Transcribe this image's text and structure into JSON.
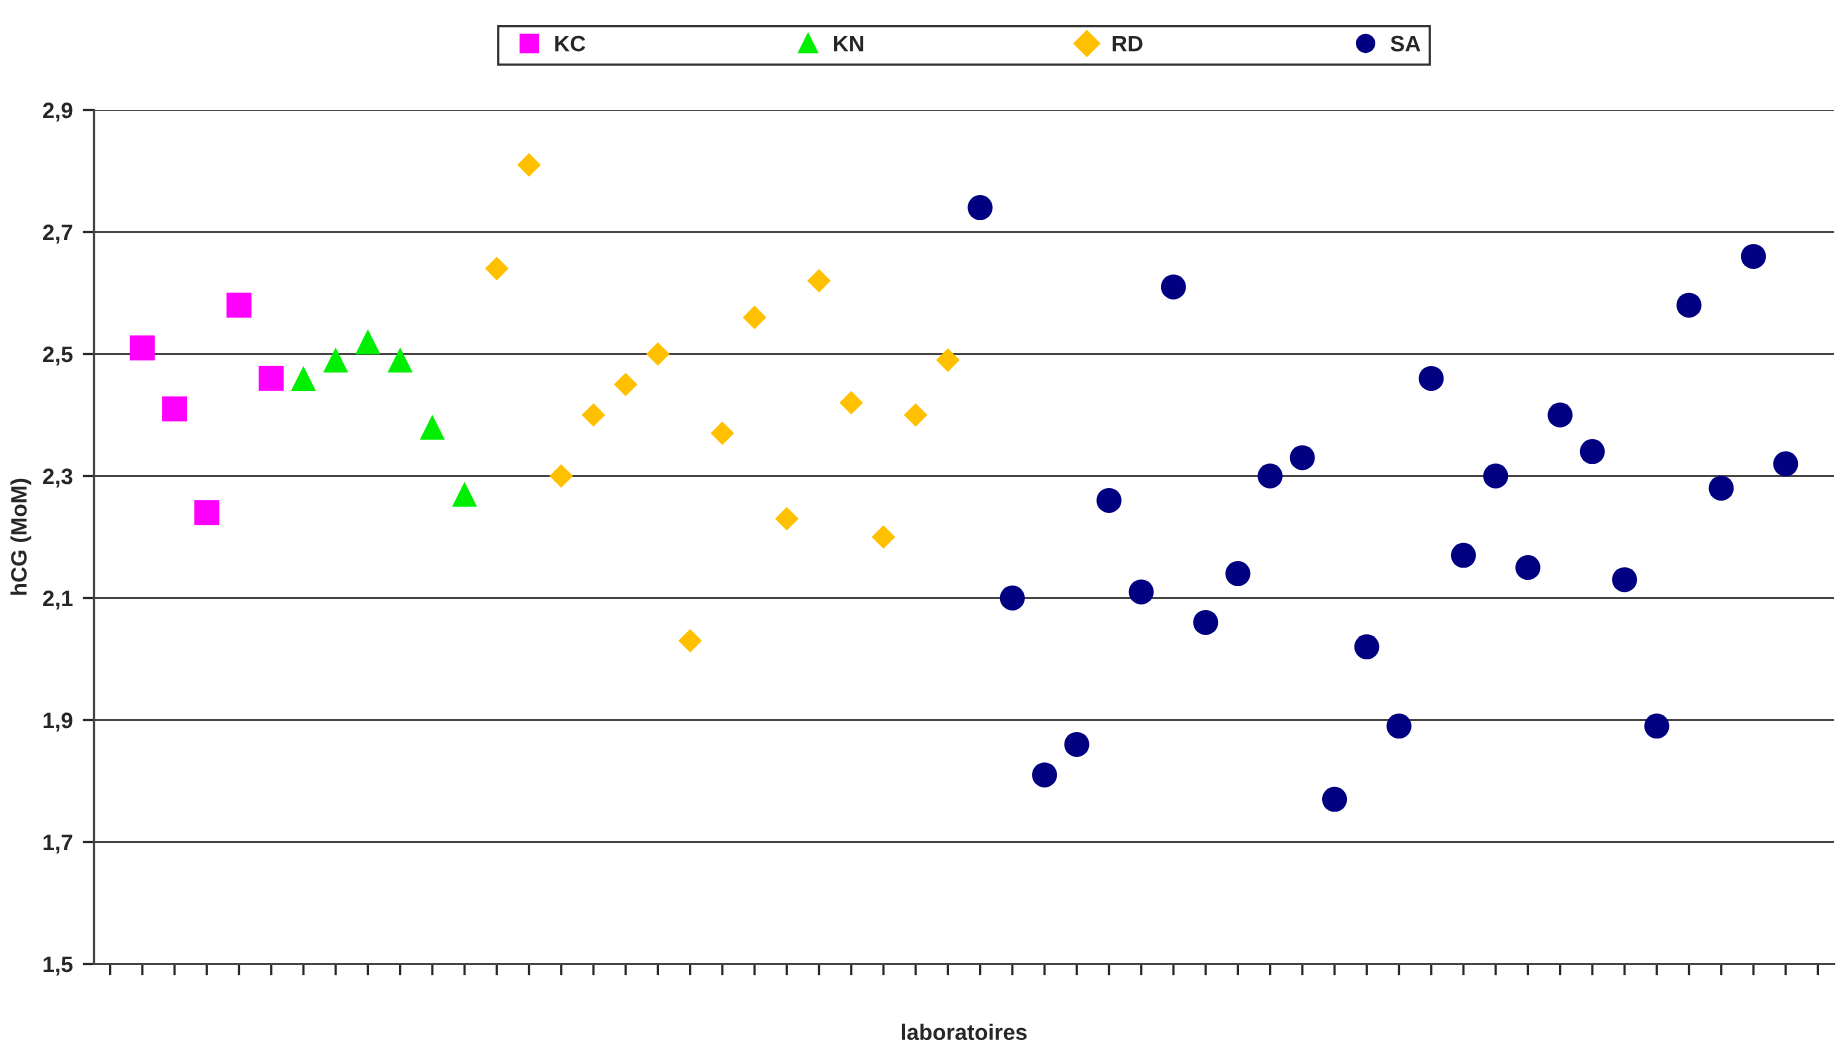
{
  "chart_data": {
    "type": "scatter",
    "xlabel": "laboratoires",
    "ylabel": "hCG (MoM)",
    "categories": [
      null,
      null,
      null,
      null,
      null,
      null,
      null,
      null,
      null,
      null,
      null,
      null,
      null,
      null,
      null,
      null,
      null,
      null,
      null,
      null,
      null,
      null,
      null,
      null,
      null,
      null,
      null,
      null,
      null,
      null,
      null,
      null,
      null,
      null,
      null,
      null,
      null,
      null,
      null,
      null,
      null,
      null,
      null,
      null,
      null,
      null,
      null,
      null,
      null,
      null,
      null,
      null,
      null,
      null
    ],
    "series": [
      {
        "name": "KC",
        "color": "#ff00ff",
        "marker": "square",
        "values": [
          null,
          2.51,
          2.41,
          2.24,
          2.58,
          2.46,
          null,
          null,
          null,
          null,
          null,
          null,
          null,
          null,
          null,
          null,
          null,
          null,
          null,
          null,
          null,
          null,
          null,
          null,
          null,
          null,
          null,
          null,
          null,
          null,
          null,
          null,
          null,
          null,
          null,
          null,
          null,
          null,
          null,
          null,
          null,
          null,
          null,
          null,
          null,
          null,
          null,
          null,
          null,
          null,
          null,
          null,
          null,
          null
        ]
      },
      {
        "name": "KN",
        "color": "#00ee00",
        "marker": "triangle",
        "values": [
          null,
          null,
          null,
          null,
          null,
          null,
          2.46,
          2.49,
          2.52,
          2.49,
          2.38,
          2.27,
          null,
          null,
          null,
          null,
          null,
          null,
          null,
          null,
          null,
          null,
          null,
          null,
          null,
          null,
          null,
          null,
          null,
          null,
          null,
          null,
          null,
          null,
          null,
          null,
          null,
          null,
          null,
          null,
          null,
          null,
          null,
          null,
          null,
          null,
          null,
          null,
          null,
          null,
          null,
          null,
          null,
          null
        ]
      },
      {
        "name": "RD",
        "color": "#ffc000",
        "marker": "diamond",
        "values": [
          null,
          null,
          null,
          null,
          null,
          null,
          null,
          null,
          null,
          null,
          null,
          null,
          2.64,
          2.81,
          2.3,
          2.4,
          2.45,
          2.5,
          2.03,
          2.37,
          2.56,
          2.23,
          2.62,
          2.42,
          2.2,
          2.4,
          2.49,
          null,
          null,
          null,
          null,
          null,
          null,
          null,
          null,
          null,
          null,
          null,
          null,
          null,
          null,
          null,
          null,
          null,
          null,
          null,
          null,
          null,
          null,
          null,
          null,
          null,
          null,
          null
        ]
      },
      {
        "name": "SA",
        "color": "#000080",
        "marker": "circle",
        "values": [
          null,
          null,
          null,
          null,
          null,
          null,
          null,
          null,
          null,
          null,
          null,
          null,
          null,
          null,
          null,
          null,
          null,
          null,
          null,
          null,
          null,
          null,
          null,
          null,
          null,
          null,
          null,
          2.74,
          2.1,
          1.81,
          1.86,
          2.26,
          2.11,
          2.61,
          2.06,
          2.14,
          2.3,
          2.33,
          1.77,
          2.02,
          1.89,
          2.46,
          2.17,
          2.3,
          2.15,
          2.4,
          2.34,
          2.13,
          1.89,
          2.58,
          2.28,
          2.66,
          2.32,
          null
        ]
      }
    ],
    "ylim": [
      1.5,
      2.9
    ],
    "yticks": [
      {
        "value": 1.5,
        "label": "1,5"
      },
      {
        "value": 1.7,
        "label": "1,7"
      },
      {
        "value": 1.9,
        "label": "1,9"
      },
      {
        "value": 2.1,
        "label": "2,1"
      },
      {
        "value": 2.3,
        "label": "2,3"
      },
      {
        "value": 2.5,
        "label": "2,5"
      },
      {
        "value": 2.7,
        "label": "2,7"
      },
      {
        "value": 2.9,
        "label": "2,9"
      }
    ],
    "grid": "y",
    "legend": "top"
  }
}
